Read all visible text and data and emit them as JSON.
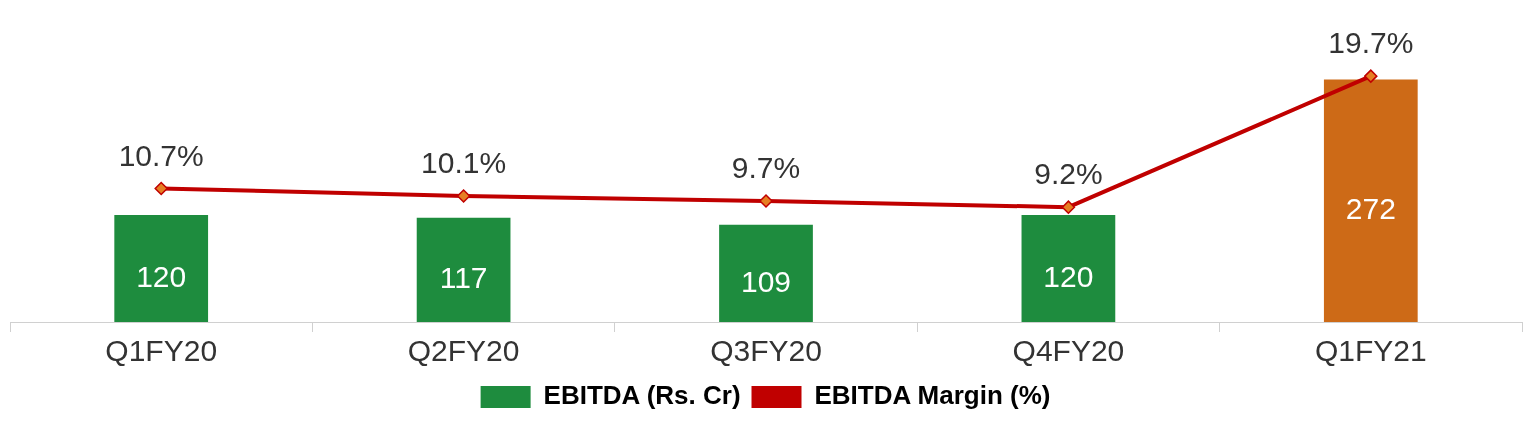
{
  "chart_data": {
    "type": "bar",
    "categories": [
      "Q1FY20",
      "Q2FY20",
      "Q3FY20",
      "Q4FY20",
      "Q1FY21"
    ],
    "series": [
      {
        "name": "EBITDA (Rs. Cr)",
        "colors": [
          "#1e8c3e",
          "#1e8c3e",
          "#1e8c3e",
          "#1e8c3e",
          "#cd6a17"
        ],
        "color": "#1e8c3e",
        "values": [
          120,
          117,
          109,
          120,
          272
        ],
        "value_labels": [
          "120",
          "117",
          "109",
          "120",
          "272"
        ]
      },
      {
        "name": "EBITDA Margin (%)",
        "type": "line",
        "axis": "y2",
        "color": "#c00000",
        "values": [
          10.7,
          10.1,
          9.7,
          9.2,
          19.7
        ],
        "value_labels": [
          "10.7%",
          "10.1%",
          "9.7%",
          "9.2%",
          "19.7%"
        ]
      }
    ],
    "legend": "bottom",
    "grid": false,
    "marker": "diamond",
    "line_style": "solid"
  }
}
